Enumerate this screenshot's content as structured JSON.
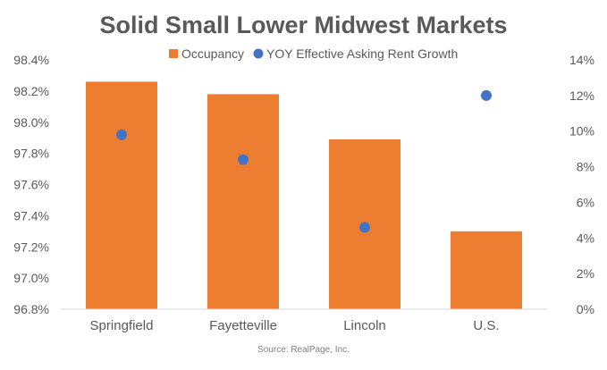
{
  "chart_data": {
    "type": "bar",
    "title": "Solid Small Lower Midwest Markets",
    "categories": [
      "Springfield",
      "Fayetteville",
      "Lincoln",
      "U.S."
    ],
    "series": [
      {
        "name": "Occupancy",
        "type": "bar",
        "axis": "left",
        "color": "#ED7D31",
        "values": [
          98.26,
          98.18,
          97.89,
          97.3
        ]
      },
      {
        "name": "YOY Effective Asking Rent Growth",
        "type": "scatter",
        "axis": "right",
        "color": "#4472C4",
        "values": [
          9.8,
          8.4,
          4.6,
          12.0
        ]
      }
    ],
    "y_left": {
      "min": 96.8,
      "max": 98.4,
      "step": 0.2,
      "ticks": [
        "96.8%",
        "97.0%",
        "97.2%",
        "97.4%",
        "97.6%",
        "97.8%",
        "98.0%",
        "98.2%",
        "98.4%"
      ]
    },
    "y_right": {
      "min": 0,
      "max": 14,
      "step": 2,
      "ticks": [
        "0%",
        "2%",
        "4%",
        "6%",
        "8%",
        "10%",
        "12%",
        "14%"
      ]
    },
    "legend_position": "top",
    "grid": false,
    "source": "Source: RealPage, Inc."
  }
}
